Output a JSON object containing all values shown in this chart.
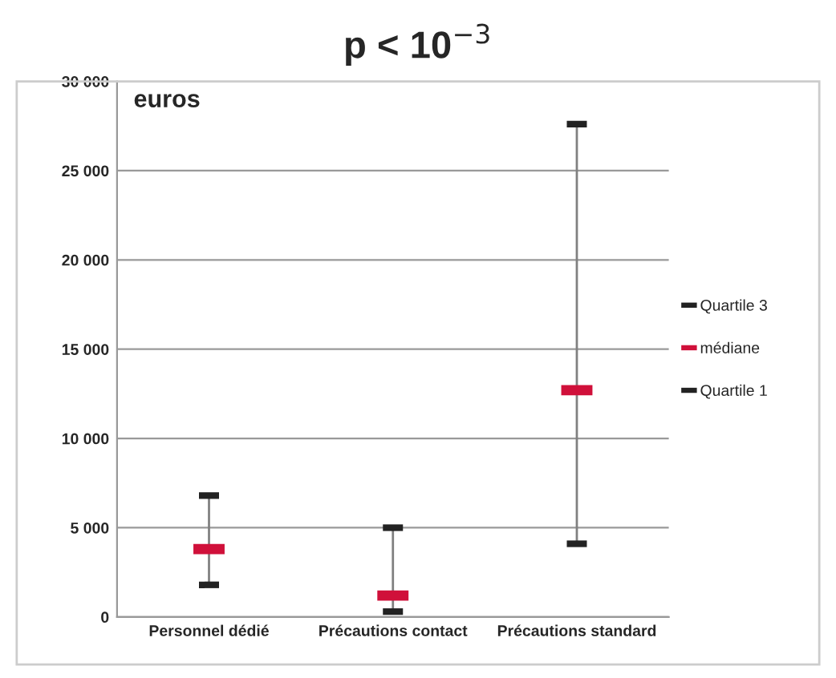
{
  "chart_data": {
    "type": "scatter",
    "title": "p < 10$^{−3}$",
    "ylabel": "euros",
    "categories": [
      "Personnel dédié",
      "Précautions contact",
      "Précautions standard"
    ],
    "series": [
      {
        "name": "Quartile 3",
        "color": "#222222",
        "values": [
          6800,
          5000,
          27600
        ]
      },
      {
        "name": "médiane",
        "color": "#d0103a",
        "values": [
          3800,
          1200,
          12700
        ]
      },
      {
        "name": "Quartile 1",
        "color": "#222222",
        "values": [
          1800,
          300,
          4100
        ]
      }
    ],
    "ylim": [
      0,
      30000
    ],
    "yticks": [
      {
        "value": 0,
        "label": "0"
      },
      {
        "value": 5000,
        "label": "5 000"
      },
      {
        "value": 10000,
        "label": "10 000"
      },
      {
        "value": 15000,
        "label": "15 000"
      },
      {
        "value": 20000,
        "label": "20 000"
      },
      {
        "value": 25000,
        "label": "25 000"
      },
      {
        "value": 30000,
        "label": "30 000"
      }
    ],
    "grid": "y",
    "legend": "right"
  }
}
